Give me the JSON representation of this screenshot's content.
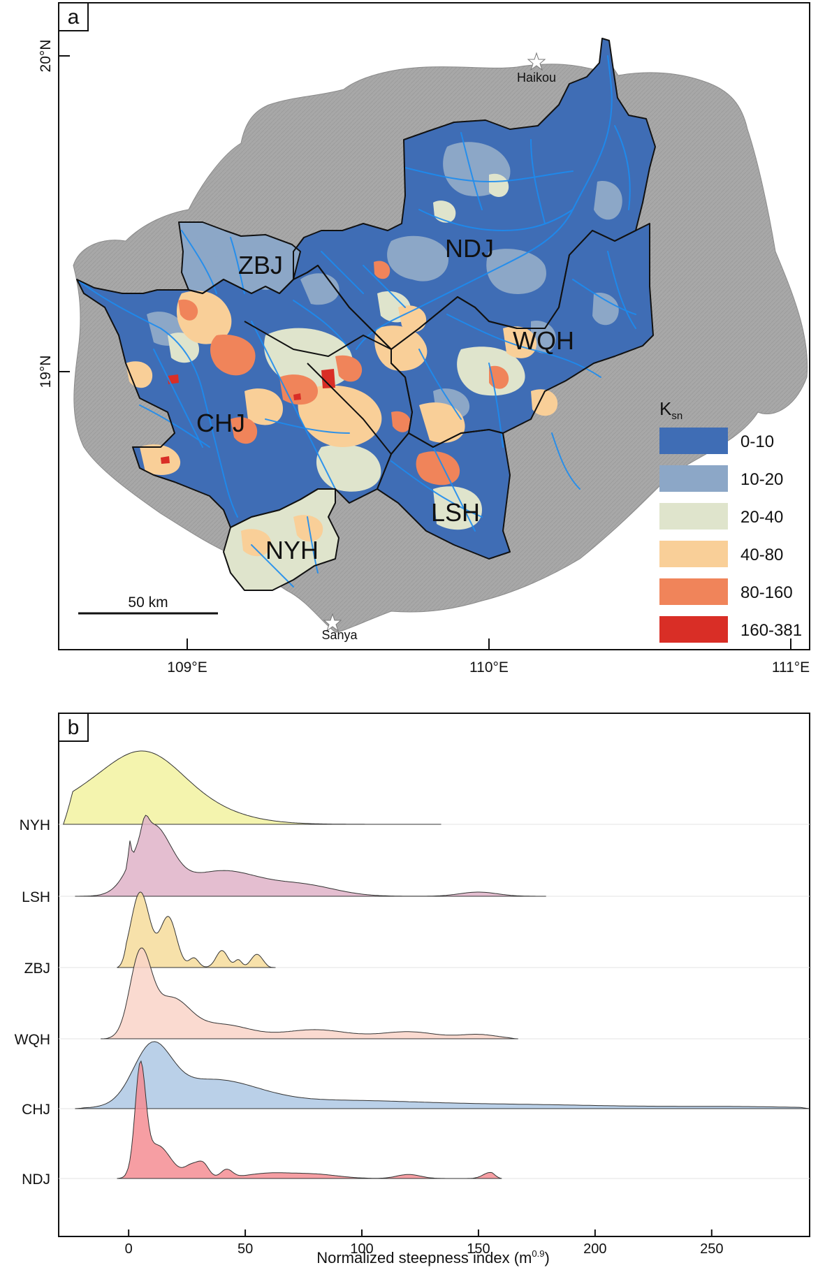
{
  "panel_a": {
    "label": "a",
    "lat_ticks": [
      "20°N",
      "19°N"
    ],
    "lon_ticks": [
      "109°E",
      "110°E",
      "111°E"
    ],
    "basins": [
      {
        "code": "NDJ"
      },
      {
        "code": "ZBJ"
      },
      {
        "code": "WQH"
      },
      {
        "code": "CHJ"
      },
      {
        "code": "LSH"
      },
      {
        "code": "NYH"
      }
    ],
    "cities": [
      {
        "name": "Haikou"
      },
      {
        "name": "Sanya"
      }
    ],
    "scale_bar": "50 km",
    "legend": {
      "title_main": "K",
      "title_sub": "sn",
      "classes": [
        {
          "label": "0-10",
          "color": "#3f6db5"
        },
        {
          "label": "10-20",
          "color": "#8ca7c7"
        },
        {
          "label": "20-40",
          "color": "#dfe4cc"
        },
        {
          "label": "40-80",
          "color": "#f9cf98"
        },
        {
          "label": "80-160",
          "color": "#f0845a"
        },
        {
          "label": "160-381",
          "color": "#d92e26"
        }
      ]
    },
    "colors": {
      "land": "#a8a8a8",
      "river": "#1c8cf0",
      "boundary": "#111111"
    }
  },
  "panel_b": {
    "label": "b",
    "chart_data": {
      "type": "ridgeline",
      "xlabel": "Normalized steepness index (m",
      "xlabel_sup": "0.9",
      "xlabel_close": ")",
      "xlim": [
        -30,
        292
      ],
      "xticks": [
        0,
        50,
        100,
        150,
        200,
        250
      ],
      "series": [
        {
          "name": "NYH",
          "color": "#f2f2a0",
          "min": -28,
          "max": 134,
          "peaks": [
            [
              8,
              14,
              0.45
            ],
            [
              2,
              26,
              1.0
            ]
          ]
        },
        {
          "name": "LSH",
          "color": "#dfb3c8",
          "min": -23,
          "max": 179,
          "peaks": [
            [
              0.5,
              0.6,
              0.5
            ],
            [
              7,
              1.5,
              0.35
            ],
            [
              10,
              8,
              1.6
            ],
            [
              40,
              16,
              0.6
            ],
            [
              75,
              14,
              0.25
            ],
            [
              150,
              8,
              0.1
            ]
          ]
        },
        {
          "name": "ZBJ",
          "color": "#f6dc9b",
          "min": -5,
          "max": 63,
          "peaks": [
            [
              5,
              4,
              1.2
            ],
            [
              17,
              3.5,
              0.8
            ],
            [
              28,
              2,
              0.15
            ],
            [
              40,
              2.5,
              0.27
            ],
            [
              47,
              1.5,
              0.12
            ],
            [
              55,
              2.5,
              0.21
            ]
          ]
        },
        {
          "name": "WQH",
          "color": "#f9d4c8",
          "min": -12,
          "max": 167,
          "peaks": [
            [
              5,
              4.5,
              1.15
            ],
            [
              18,
              8,
              0.55
            ],
            [
              40,
              12,
              0.2
            ],
            [
              80,
              14,
              0.13
            ],
            [
              120,
              12,
              0.1
            ],
            [
              150,
              8,
              0.06
            ]
          ]
        },
        {
          "name": "CHJ",
          "color": "#aec8e4",
          "min": -23,
          "max": 292,
          "peaks": [
            [
              10,
              8,
              1.0
            ],
            [
              35,
              20,
              0.5
            ],
            [
              90,
              35,
              0.14
            ],
            [
              170,
              40,
              0.07
            ],
            [
              260,
              30,
              0.035
            ]
          ]
        },
        {
          "name": "NDJ",
          "color": "#f58d93",
          "min": -5,
          "max": 160,
          "peaks": [
            [
              5,
              2.2,
              3.0
            ],
            [
              12,
              6,
              1.0
            ],
            [
              27,
              3,
              0.35
            ],
            [
              32,
              2.5,
              0.4
            ],
            [
              42,
              2.5,
              0.25
            ],
            [
              60,
              10,
              0.15
            ],
            [
              80,
              10,
              0.12
            ],
            [
              120,
              5,
              0.12
            ],
            [
              155,
              3,
              0.18
            ]
          ]
        }
      ]
    }
  }
}
